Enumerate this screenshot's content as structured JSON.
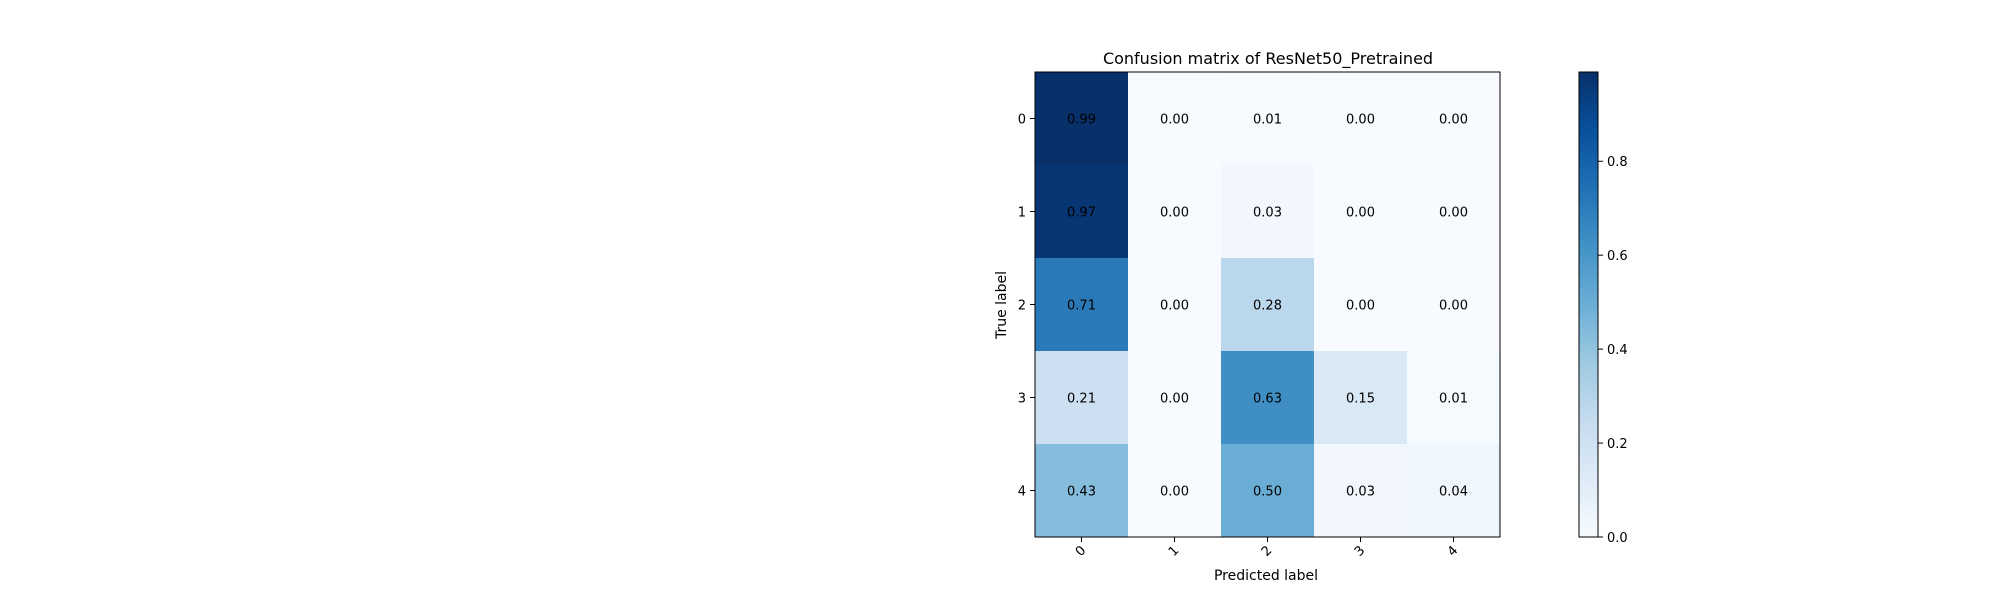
{
  "chart_data": {
    "type": "heatmap",
    "title": "Confusion matrix of ResNet50_Pretrained",
    "xlabel": "Predicted label",
    "ylabel": "True label",
    "x_tick_labels": [
      "0",
      "1",
      "2",
      "3",
      "4"
    ],
    "y_tick_labels": [
      "0",
      "1",
      "2",
      "3",
      "4"
    ],
    "values": [
      [
        0.99,
        0.0,
        0.01,
        0.0,
        0.0
      ],
      [
        0.97,
        0.0,
        0.03,
        0.0,
        0.0
      ],
      [
        0.71,
        0.0,
        0.28,
        0.0,
        0.0
      ],
      [
        0.21,
        0.0,
        0.63,
        0.15,
        0.01
      ],
      [
        0.43,
        0.0,
        0.5,
        0.03,
        0.04
      ]
    ],
    "cell_labels": [
      [
        "0.99",
        "0.00",
        "0.01",
        "0.00",
        "0.00"
      ],
      [
        "0.97",
        "0.00",
        "0.03",
        "0.00",
        "0.00"
      ],
      [
        "0.71",
        "0.00",
        "0.28",
        "0.00",
        "0.00"
      ],
      [
        "0.21",
        "0.00",
        "0.63",
        "0.15",
        "0.01"
      ],
      [
        "0.43",
        "0.00",
        "0.50",
        "0.03",
        "0.04"
      ]
    ],
    "colormap": "Blues",
    "color_range": [
      0.0,
      0.99
    ],
    "colorbar": {
      "ticks": [
        0.0,
        0.2,
        0.4,
        0.6,
        0.8
      ],
      "tick_labels": [
        "0.0",
        "0.2",
        "0.4",
        "0.6",
        "0.8"
      ]
    },
    "x_tick_rotation_deg": 45,
    "grid": false
  }
}
